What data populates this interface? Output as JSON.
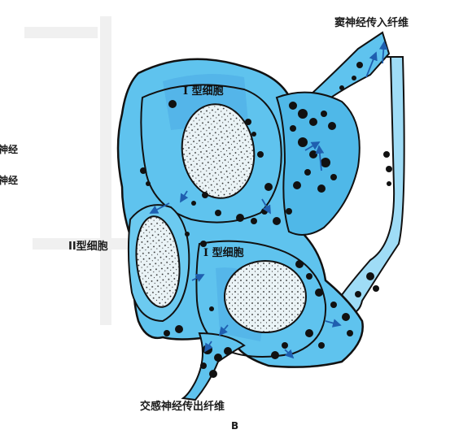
{
  "labels": {
    "sinus_nerve_afferent": "窦神经传入纤维",
    "type1_cell_top": "I 型细胞",
    "type2_cell": "II型细胞",
    "type1_cell_bottom": "I 型细胞",
    "sympathetic_efferent": "交感神经传出纤维",
    "panel_letter": "B",
    "left_cut_1": "神经",
    "left_cut_2": "神经"
  },
  "colors": {
    "cytoplasm": "#5fc3ee",
    "cytoplasm_light": "#9fdcf6",
    "highlight": "#4aa7e3",
    "nucleus": "#eaf3f6",
    "outline": "#111111",
    "arrow": "#1f5fb0"
  }
}
